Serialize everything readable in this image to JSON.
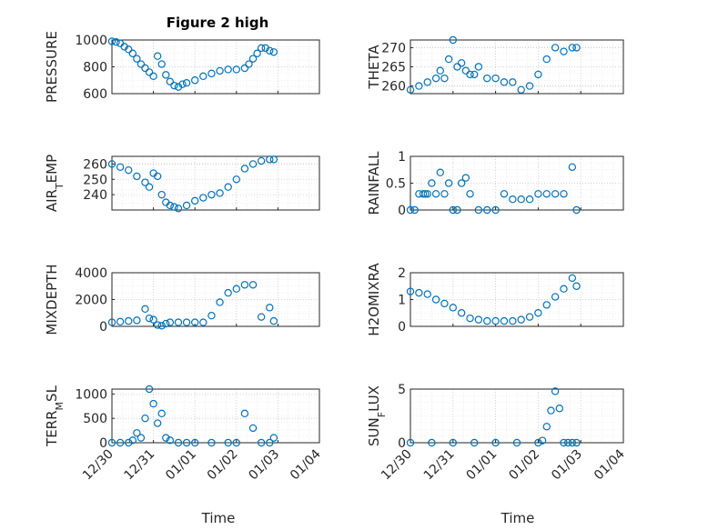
{
  "figure": {
    "title": "Figure 2 high"
  },
  "colors": {
    "marker": "#0072BD",
    "axis": "#262626",
    "grid": "#c8c8c8"
  },
  "x_axis": {
    "label": "Time",
    "range_days": [
      0,
      5
    ],
    "ticks": [
      {
        "day": 0,
        "label": "12/30"
      },
      {
        "day": 1,
        "label": "12/31"
      },
      {
        "day": 2,
        "label": "01/01"
      },
      {
        "day": 3,
        "label": "01/02"
      },
      {
        "day": 4,
        "label": "01/03"
      },
      {
        "day": 5,
        "label": "01/04"
      }
    ]
  },
  "chart_data": [
    {
      "type": "scatter",
      "ylabel": "PRESSURE",
      "ylim": [
        600,
        1000
      ],
      "yticks": [
        600,
        800,
        1000
      ],
      "grid": true,
      "x": [
        0,
        0.1,
        0.2,
        0.3,
        0.4,
        0.5,
        0.6,
        0.7,
        0.8,
        0.9,
        1.0,
        1.1,
        1.2,
        1.3,
        1.4,
        1.5,
        1.6,
        1.7,
        1.8,
        2.0,
        2.2,
        2.4,
        2.6,
        2.8,
        3.0,
        3.2,
        3.3,
        3.4,
        3.5,
        3.6,
        3.7,
        3.8,
        3.9
      ],
      "y": [
        990,
        985,
        975,
        950,
        930,
        900,
        860,
        820,
        790,
        760,
        730,
        880,
        820,
        740,
        690,
        660,
        650,
        670,
        680,
        700,
        730,
        750,
        770,
        780,
        780,
        790,
        820,
        860,
        900,
        940,
        940,
        920,
        910
      ]
    },
    {
      "type": "scatter",
      "ylabel": "THETA",
      "ylim": [
        258,
        272
      ],
      "yticks": [
        260,
        265,
        270
      ],
      "grid": true,
      "x": [
        0,
        0.2,
        0.4,
        0.6,
        0.7,
        0.8,
        0.9,
        1.0,
        1.1,
        1.2,
        1.3,
        1.4,
        1.5,
        1.6,
        1.8,
        2.0,
        2.2,
        2.4,
        2.6,
        2.8,
        3.0,
        3.2,
        3.4,
        3.6,
        3.8,
        3.9
      ],
      "y": [
        259,
        260,
        261,
        262,
        264,
        262,
        267,
        272,
        265,
        266,
        264,
        263,
        263,
        265,
        262,
        262,
        261,
        261,
        259,
        260,
        263,
        267,
        270,
        269,
        270,
        270
      ]
    },
    {
      "type": "scatter",
      "ylabel": "AIR_TEMP",
      "ylim": [
        230,
        265
      ],
      "yticks": [
        240,
        250,
        260
      ],
      "grid": true,
      "x": [
        0,
        0.2,
        0.4,
        0.6,
        0.8,
        0.9,
        1.0,
        1.1,
        1.2,
        1.3,
        1.4,
        1.5,
        1.6,
        1.8,
        2.0,
        2.2,
        2.4,
        2.6,
        2.8,
        3.0,
        3.2,
        3.4,
        3.6,
        3.8,
        3.9
      ],
      "y": [
        260,
        258,
        256,
        252,
        248,
        245,
        254,
        252,
        240,
        235,
        233,
        232,
        231,
        233,
        236,
        238,
        240,
        241,
        245,
        250,
        257,
        260,
        262,
        263,
        263
      ]
    },
    {
      "type": "scatter",
      "ylabel": "RAINFALL",
      "ylim": [
        0,
        1
      ],
      "yticks": [
        0,
        0.5,
        1
      ],
      "grid": true,
      "x": [
        0,
        0.1,
        0.2,
        0.3,
        0.35,
        0.4,
        0.5,
        0.6,
        0.7,
        0.8,
        0.9,
        1.0,
        1.1,
        1.2,
        1.3,
        1.4,
        1.6,
        1.8,
        2.0,
        2.2,
        2.4,
        2.6,
        2.8,
        3.0,
        3.2,
        3.4,
        3.6,
        3.8,
        3.9
      ],
      "y": [
        0,
        0,
        0.3,
        0.3,
        0.3,
        0.3,
        0.5,
        0.3,
        0.7,
        0.3,
        0.5,
        0,
        0,
        0.5,
        0.6,
        0.3,
        0,
        0,
        0,
        0.3,
        0.2,
        0.2,
        0.2,
        0.3,
        0.3,
        0.3,
        0.3,
        0.8,
        0
      ]
    },
    {
      "type": "scatter",
      "ylabel": "MIXDEPTH",
      "ylim": [
        0,
        4000
      ],
      "yticks": [
        0,
        2000,
        4000
      ],
      "grid": true,
      "x": [
        0,
        0.2,
        0.4,
        0.6,
        0.8,
        0.9,
        1.0,
        1.1,
        1.2,
        1.3,
        1.4,
        1.6,
        1.8,
        2.0,
        2.2,
        2.4,
        2.6,
        2.8,
        3.0,
        3.2,
        3.4,
        3.6,
        3.8,
        3.9
      ],
      "y": [
        300,
        350,
        400,
        450,
        1300,
        600,
        500,
        100,
        50,
        200,
        300,
        300,
        300,
        300,
        300,
        800,
        1800,
        2500,
        2800,
        3100,
        3100,
        700,
        1400,
        400
      ]
    },
    {
      "type": "scatter",
      "ylabel": "H2OMIXRA",
      "ylim": [
        0,
        2
      ],
      "yticks": [
        0,
        1,
        2
      ],
      "grid": true,
      "x": [
        0,
        0.2,
        0.4,
        0.6,
        0.8,
        1.0,
        1.2,
        1.4,
        1.6,
        1.8,
        2.0,
        2.2,
        2.4,
        2.6,
        2.8,
        3.0,
        3.2,
        3.4,
        3.6,
        3.8,
        3.9
      ],
      "y": [
        1.3,
        1.25,
        1.2,
        1.0,
        0.85,
        0.7,
        0.5,
        0.3,
        0.25,
        0.2,
        0.2,
        0.2,
        0.2,
        0.25,
        0.35,
        0.5,
        0.8,
        1.1,
        1.4,
        1.8,
        1.5
      ]
    },
    {
      "type": "scatter",
      "ylabel": "TERR_MSL",
      "ylim": [
        0,
        1100
      ],
      "yticks": [
        0,
        500,
        1000
      ],
      "grid": true,
      "x": [
        0,
        0.2,
        0.4,
        0.5,
        0.6,
        0.7,
        0.8,
        0.9,
        1.0,
        1.1,
        1.2,
        1.3,
        1.4,
        1.6,
        1.8,
        2.0,
        2.4,
        2.8,
        3.0,
        3.2,
        3.4,
        3.6,
        3.8,
        3.9
      ],
      "y": [
        0,
        0,
        0,
        50,
        200,
        100,
        500,
        1100,
        800,
        400,
        600,
        100,
        50,
        0,
        0,
        0,
        0,
        0,
        0,
        600,
        300,
        0,
        0,
        100
      ]
    },
    {
      "type": "scatter",
      "ylabel": "SUN_FLUX",
      "ylim": [
        0,
        5
      ],
      "yticks": [
        0,
        5
      ],
      "grid": true,
      "x": [
        0,
        0.5,
        1.0,
        1.5,
        2.0,
        2.5,
        3.0,
        3.1,
        3.2,
        3.3,
        3.4,
        3.5,
        3.6,
        3.7,
        3.8,
        3.9
      ],
      "y": [
        0,
        0,
        0,
        0,
        0,
        0,
        0,
        0.2,
        1.5,
        3,
        4.8,
        3.2,
        0,
        0,
        0,
        0
      ]
    }
  ]
}
